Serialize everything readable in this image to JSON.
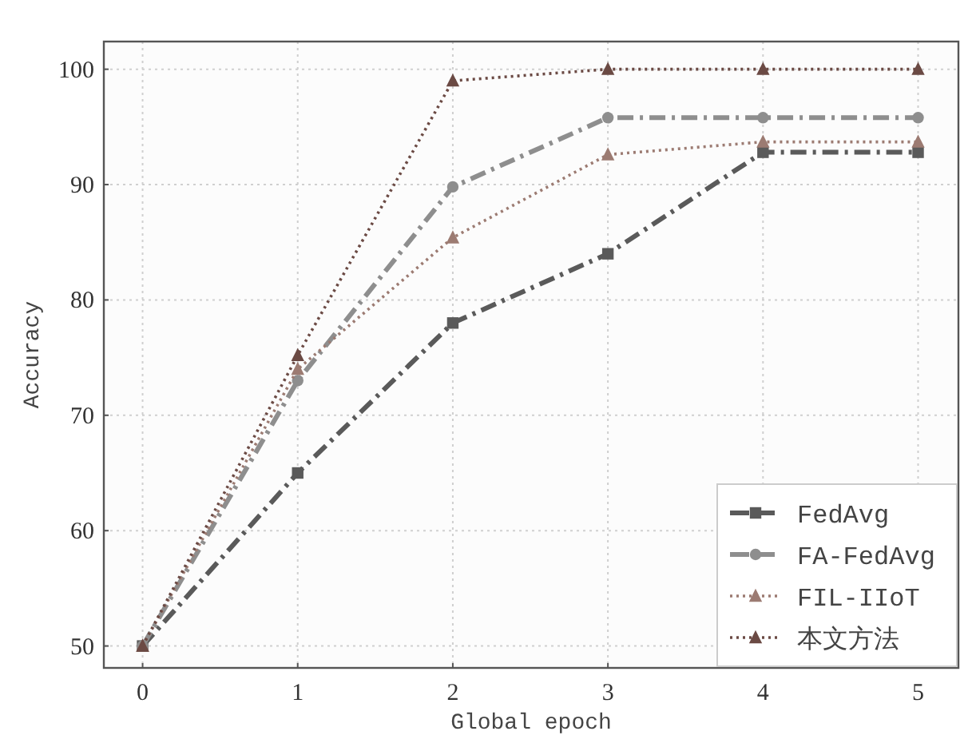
{
  "chart_data": {
    "type": "line",
    "xlabel": "Global epoch",
    "ylabel": "Accuracy",
    "x": [
      0,
      1,
      2,
      3,
      4,
      5
    ],
    "xlim": [
      -0.25,
      5.26
    ],
    "xticks": [
      0,
      1,
      2,
      3,
      4,
      5
    ],
    "ylim": [
      48.1,
      102.4
    ],
    "yticks": [
      50,
      60,
      70,
      80,
      90,
      100
    ],
    "grid": true,
    "legend": "bottom right",
    "series": [
      {
        "name": "FedAvg",
        "color": "#5a5a5a",
        "marker": "square",
        "line_style": "dashed",
        "values": [
          50,
          65,
          78,
          84,
          92.8,
          92.8
        ]
      },
      {
        "name": "FA-FedAvg",
        "color": "#8e8e8e",
        "marker": "circle",
        "line_style": "dashed",
        "values": [
          50,
          73,
          89.8,
          95.8,
          95.8,
          95.8
        ]
      },
      {
        "name": "FIL-IIoT",
        "color": "#9c7b72",
        "marker": "triangle",
        "line_style": "dotted",
        "values": [
          50,
          74,
          85.4,
          92.6,
          93.7,
          93.7
        ]
      },
      {
        "name": "本文方法",
        "color": "#6b4a44",
        "marker": "triangle",
        "line_style": "dotted",
        "values": [
          50,
          75.2,
          99,
          100,
          100,
          100
        ]
      }
    ]
  }
}
